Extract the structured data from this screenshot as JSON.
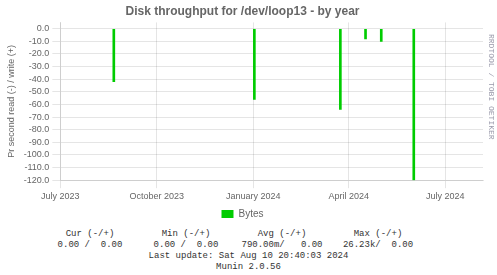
{
  "chart_data": {
    "type": "bar",
    "title": "Disk throughput for /dev/loop13 - by year",
    "ylabel": "Pr second read (-) / write (+)",
    "x": [
      1692576000,
      1704153600,
      1711238400,
      1713312000,
      1714608000,
      1717286400
    ],
    "series": [
      {
        "name": "Bytes",
        "color": "#00cc00",
        "values": [
          -42,
          -56,
          -64,
          -8,
          -10,
          -120
        ]
      }
    ],
    "xlim": [
      1688169600,
      1722988800
    ],
    "xticks": [
      {
        "value": 1688169600,
        "label": "July 2023"
      },
      {
        "value": 1696118400,
        "label": "October 2023"
      },
      {
        "value": 1704067200,
        "label": "January 2024"
      },
      {
        "value": 1711929600,
        "label": "April 2024"
      },
      {
        "value": 1719878400,
        "label": "July 2024"
      }
    ],
    "ylim": [
      -120,
      5
    ],
    "yticks": [
      {
        "value": 0,
        "label": "0.0"
      },
      {
        "value": -10,
        "label": "-10.0"
      },
      {
        "value": -20,
        "label": "-20.0"
      },
      {
        "value": -30,
        "label": "-30.0"
      },
      {
        "value": -40,
        "label": "-40.0"
      },
      {
        "value": -50,
        "label": "-50.0"
      },
      {
        "value": -60,
        "label": "-60.0"
      },
      {
        "value": -70,
        "label": "-70.0"
      },
      {
        "value": -80,
        "label": "-80.0"
      },
      {
        "value": -90,
        "label": "-90.0"
      },
      {
        "value": -100,
        "label": "-100.0"
      },
      {
        "value": -110,
        "label": "-110.0"
      },
      {
        "value": -120,
        "label": "-120.0"
      }
    ],
    "grid": true,
    "legend": "bottom",
    "annotations": [
      [
        "RRDTOOL / TOBI OETIKER"
      ],
      [
        "Cur (-/+)",
        "Min (-/+)",
        "Avg (-/+)",
        "Max (-/+)"
      ],
      [
        "0.00 /  0.00",
        "0.00 /  0.00",
        "790.00m/   0.00",
        "26.23k/  0.00"
      ],
      [
        "Last update: Sat Aug 10 20:40:03 2024"
      ],
      [
        "Munin 2.0.56"
      ]
    ]
  }
}
